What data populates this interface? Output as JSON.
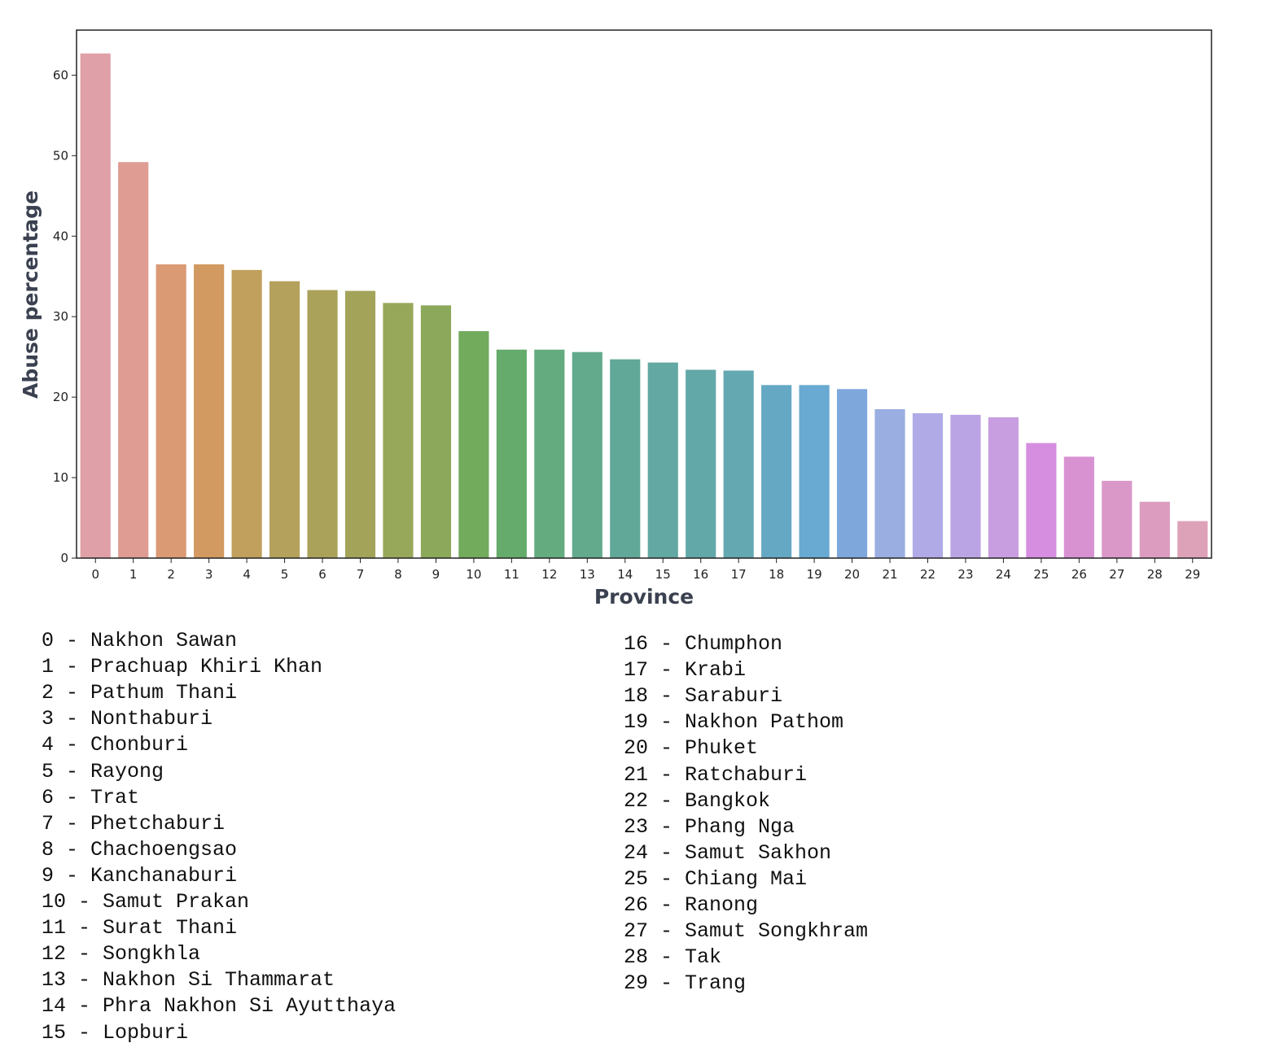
{
  "chart_data": {
    "type": "bar",
    "xlabel": "Province",
    "ylabel": "Abuse percentage",
    "categories": [
      "0",
      "1",
      "2",
      "3",
      "4",
      "5",
      "6",
      "7",
      "8",
      "9",
      "10",
      "11",
      "12",
      "13",
      "14",
      "15",
      "16",
      "17",
      "18",
      "19",
      "20",
      "21",
      "22",
      "23",
      "24",
      "25",
      "26",
      "27",
      "28",
      "29"
    ],
    "values": [
      62.7,
      49.2,
      36.5,
      36.5,
      35.8,
      34.4,
      33.3,
      33.2,
      31.7,
      31.4,
      28.2,
      25.9,
      25.9,
      25.6,
      24.7,
      24.3,
      23.4,
      23.3,
      21.5,
      21.5,
      21.0,
      18.5,
      18.0,
      17.8,
      17.5,
      14.3,
      12.6,
      9.6,
      7.0,
      4.6
    ],
    "colors": [
      "#e0a0a8",
      "#de9c93",
      "#da9a74",
      "#d29a60",
      "#c0a05c",
      "#b4a25c",
      "#aaa25a",
      "#a3a45a",
      "#97a85a",
      "#8ca85a",
      "#72ab5c",
      "#65ab6c",
      "#64ab80",
      "#63aa8c",
      "#62a898",
      "#63a8a2",
      "#63a8a8",
      "#64a8b2",
      "#65a8c4",
      "#68aad2",
      "#7ea8dc",
      "#9aaee2",
      "#b0aae6",
      "#bba4e4",
      "#c89ee0",
      "#d68ee0",
      "#d892d2",
      "#da98c8",
      "#dc9cc0",
      "#dea2b8"
    ],
    "yticks": [
      0,
      10,
      20,
      30,
      40,
      50,
      60
    ],
    "ylim": [
      0,
      65.6
    ],
    "grid": false
  },
  "legend": {
    "left": [
      "0 - Nakhon Sawan",
      "1 - Prachuap Khiri Khan",
      "2 - Pathum Thani",
      "3 - Nonthaburi",
      "4 - Chonburi",
      "5 - Rayong",
      "6 - Trat",
      "7 - Phetchaburi",
      "8 - Chachoengsao",
      "9 - Kanchanaburi",
      "10 - Samut Prakan",
      "11 - Surat Thani",
      "12 - Songkhla",
      "13 - Nakhon Si Thammarat",
      "14 - Phra Nakhon Si Ayutthaya",
      "15 - Lopburi"
    ],
    "right": [
      "16 - Chumphon",
      "17 - Krabi",
      "18 - Saraburi",
      "19 - Nakhon Pathom",
      "20 - Phuket",
      "21 - Ratchaburi",
      "22 - Bangkok",
      "23 - Phang Nga",
      "24 - Samut Sakhon",
      "25 - Chiang Mai",
      "26 - Ranong",
      "27 - Samut Songkhram",
      "28 - Tak",
      "29 - Trang"
    ]
  }
}
